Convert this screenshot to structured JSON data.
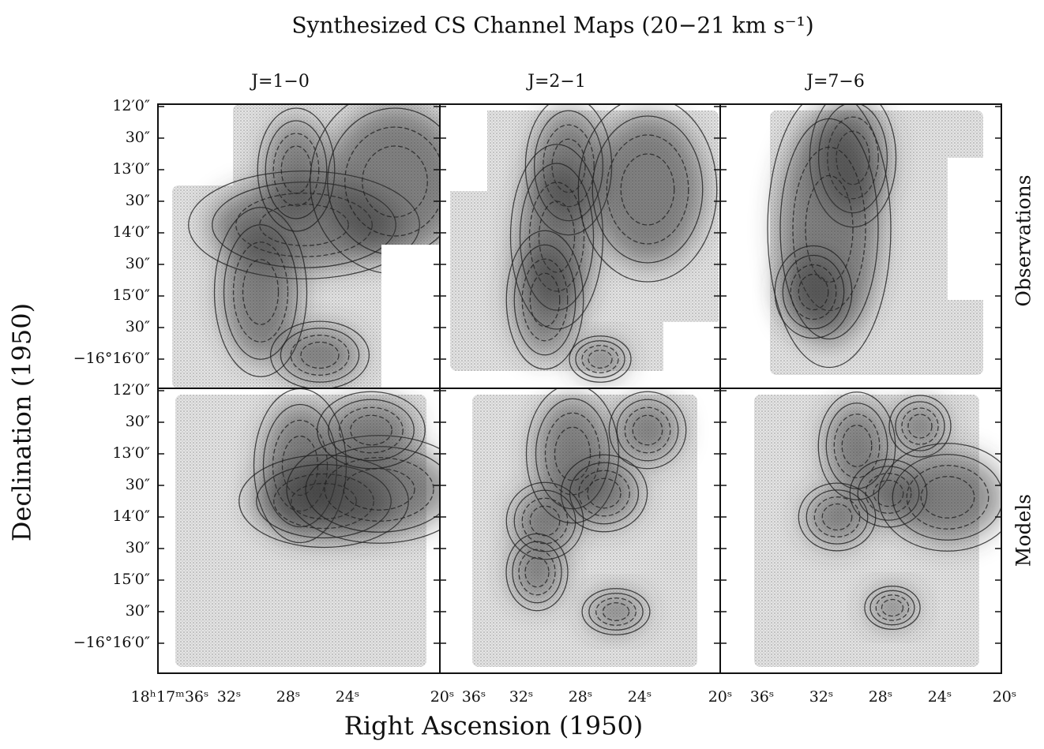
{
  "title": "Synthesized CS Channel Maps (20−21 km s⁻¹)",
  "column_titles": [
    "J=1−0",
    "J=2−1",
    "J=7−6"
  ],
  "row_labels": [
    "Observations",
    "Models"
  ],
  "y_axis_label": "Declination (1950)",
  "x_axis_label": "Right Ascension (1950)",
  "y_tick_labels": [
    "12′0″",
    "30″",
    "13′0″",
    "30″",
    "14′0″",
    "30″",
    "15′0″",
    "30″",
    "−16°16′0″"
  ],
  "x_tick_labels": [
    "18ʰ17ᵐ36ˢ",
    "32ˢ",
    "28ˢ",
    "24ˢ",
    "20ˢ",
    "36ˢ",
    "32ˢ",
    "28ˢ",
    "24ˢ",
    "20ˢ",
    "36ˢ",
    "32ˢ",
    "28ˢ",
    "24ˢ",
    "20ˢ"
  ]
}
